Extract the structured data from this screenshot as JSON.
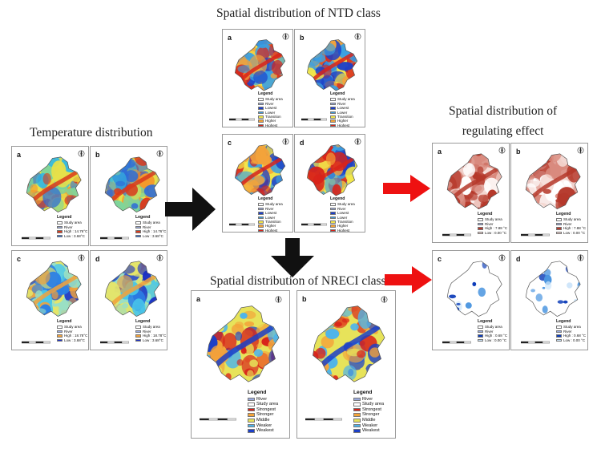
{
  "titles": {
    "temperature": "Temperature distribution",
    "ntd": "Spatial distribution of NTD class",
    "nreci": "Spatial distribution of NRECI class",
    "regulating": "Spatial distribution of\nregulating effect"
  },
  "temperature_panels": [
    {
      "label": "a",
      "legend": [
        "Study area",
        "River",
        "High : 14.76°C",
        "Low : 3.68°C"
      ],
      "palette": "warm"
    },
    {
      "label": "b",
      "legend": [
        "Study area",
        "River",
        "High : 14.76°C",
        "Low : 3.68°C"
      ],
      "palette": "warm"
    },
    {
      "label": "c",
      "legend": [
        "Study area",
        "River",
        "High : 18.78°C",
        "Low : 3.68°C"
      ],
      "palette": "cool"
    },
    {
      "label": "d",
      "legend": [
        "Study area",
        "River",
        "High : 18.78°C",
        "Low : 3.68°C"
      ],
      "palette": "cool"
    }
  ],
  "ntd_panels": [
    {
      "label": "a"
    },
    {
      "label": "b"
    },
    {
      "label": "c"
    },
    {
      "label": "d"
    }
  ],
  "ntd_legend": {
    "title": "Legend",
    "items": [
      "Study area",
      "River",
      "Lowest",
      "Lower",
      "Transition",
      "Higher",
      "Highest"
    ]
  },
  "nreci_panels": [
    {
      "label": "a"
    },
    {
      "label": "b"
    }
  ],
  "nreci_legend_a": {
    "title": "Legend",
    "items": [
      "River",
      "Study area",
      "Strongest",
      "Stronger",
      "Middle",
      "Weaker",
      "Weakest"
    ]
  },
  "nreci_legend_b": {
    "title": "Legend",
    "items": [
      "River",
      "Study area",
      "Strongest",
      "Stronger",
      "Middle",
      "Weaker",
      "Weakest"
    ]
  },
  "regulating_panels": [
    {
      "label": "a",
      "legend": [
        "Study area",
        "River",
        "High : 7.88 °C",
        "Low : 0.00 °C"
      ],
      "palette": "red"
    },
    {
      "label": "b",
      "legend": [
        "Study area",
        "River",
        "High : 7.88 °C",
        "Low : 0.00 °C"
      ],
      "palette": "red"
    },
    {
      "label": "c",
      "legend": [
        "Study area",
        "River",
        "High : 0.68 °C",
        "Low : 0.00 °C"
      ],
      "palette": "blue"
    },
    {
      "label": "d",
      "legend": [
        "Study area",
        "River",
        "High : 0.68 °C",
        "Low : 0.00 °C"
      ],
      "palette": "blue"
    }
  ],
  "legend_title": "Legend",
  "colors": {
    "warm": [
      "#2f6bd6",
      "#35b9e0",
      "#7fd59a",
      "#e6e04a",
      "#f39b2d",
      "#d93a1c"
    ],
    "cool": [
      "#1b2fc4",
      "#2a7fe6",
      "#48c6e8",
      "#9ae0c4",
      "#e4e56a",
      "#f1a23c"
    ],
    "ntd": [
      "#1c3fc8",
      "#3aa0e2",
      "#f2e64a",
      "#f3a33a",
      "#d8231a"
    ],
    "nreci": [
      "#d8231a",
      "#f3a33a",
      "#e7e35a",
      "#4eb4ea",
      "#1b3fc8"
    ],
    "red": [
      "#ffffff",
      "#f3d6d0",
      "#d98a7e",
      "#b5382a"
    ],
    "blue": [
      "#ffffff",
      "#cfe6fa",
      "#4a95e0",
      "#0b3bb8"
    ],
    "arrow_black": "#111111",
    "arrow_red": "#ee1111"
  }
}
